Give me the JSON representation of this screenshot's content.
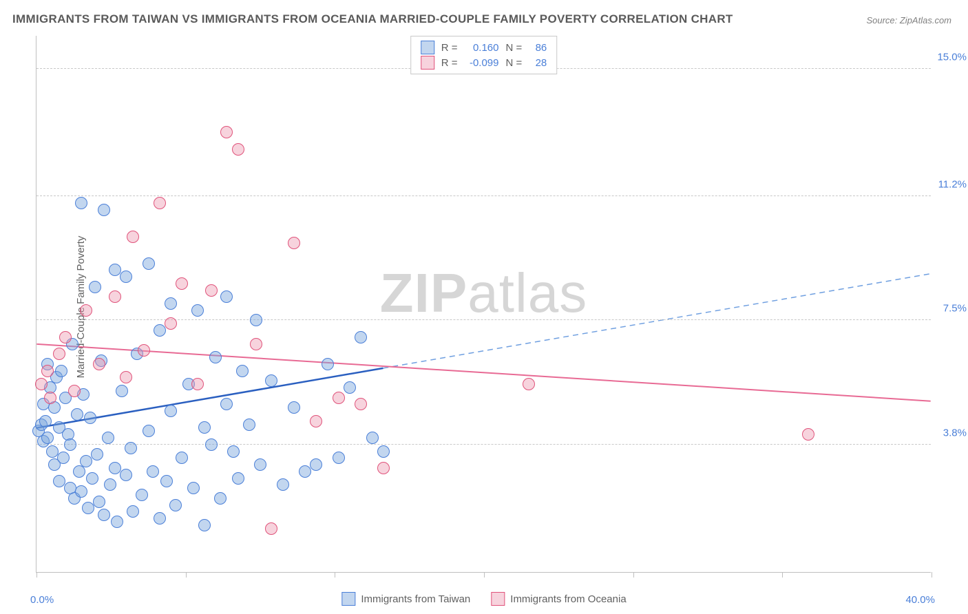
{
  "title": "IMMIGRANTS FROM TAIWAN VS IMMIGRANTS FROM OCEANIA MARRIED-COUPLE FAMILY POVERTY CORRELATION CHART",
  "source": "Source: ZipAtlas.com",
  "y_axis_label": "Married-Couple Family Poverty",
  "watermark_a": "ZIP",
  "watermark_b": "atlas",
  "chart": {
    "type": "scatter",
    "background_color": "#ffffff",
    "grid_color": "#c8c8c8",
    "axis_color": "#bfbfbf",
    "label_fontsize": 15,
    "title_fontsize": 17,
    "x_min": 0.0,
    "x_max": 40.0,
    "x_min_label": "0.0%",
    "x_max_label": "40.0%",
    "x_ticks": [
      0,
      6.67,
      13.33,
      20,
      26.67,
      33.33,
      40
    ],
    "y_min": 0.0,
    "y_max": 16.0,
    "y_gridlines": [
      {
        "value": 3.8,
        "label": "3.8%"
      },
      {
        "value": 7.5,
        "label": "7.5%"
      },
      {
        "value": 11.2,
        "label": "11.2%"
      },
      {
        "value": 15.0,
        "label": "15.0%"
      }
    ],
    "series": [
      {
        "name": "Immigrants from Taiwan",
        "marker_fill": "rgba(120,165,220,0.45)",
        "marker_stroke": "#4a7fd8",
        "marker_size": 18,
        "r_value": "0.160",
        "n_value": "86",
        "trend": {
          "x1": 0,
          "y1": 4.3,
          "x2": 40,
          "y2": 8.9,
          "solid_until_x": 15.5,
          "solid_color": "#2a5fc0",
          "solid_width": 2.5,
          "dash_color": "#6f9fe0",
          "dash_width": 1.5
        },
        "points": [
          [
            0.1,
            4.2
          ],
          [
            0.2,
            4.4
          ],
          [
            0.3,
            3.9
          ],
          [
            0.3,
            5.0
          ],
          [
            0.4,
            4.5
          ],
          [
            0.5,
            6.2
          ],
          [
            0.5,
            4.0
          ],
          [
            0.6,
            5.5
          ],
          [
            0.7,
            3.6
          ],
          [
            0.8,
            4.9
          ],
          [
            0.8,
            3.2
          ],
          [
            0.9,
            5.8
          ],
          [
            1.0,
            4.3
          ],
          [
            1.0,
            2.7
          ],
          [
            1.1,
            6.0
          ],
          [
            1.2,
            3.4
          ],
          [
            1.3,
            5.2
          ],
          [
            1.4,
            4.1
          ],
          [
            1.5,
            2.5
          ],
          [
            1.5,
            3.8
          ],
          [
            1.6,
            6.8
          ],
          [
            1.7,
            2.2
          ],
          [
            1.8,
            4.7
          ],
          [
            1.9,
            3.0
          ],
          [
            2.0,
            11.0
          ],
          [
            2.0,
            2.4
          ],
          [
            2.1,
            5.3
          ],
          [
            2.2,
            3.3
          ],
          [
            2.3,
            1.9
          ],
          [
            2.4,
            4.6
          ],
          [
            2.5,
            2.8
          ],
          [
            2.6,
            8.5
          ],
          [
            2.7,
            3.5
          ],
          [
            2.8,
            2.1
          ],
          [
            2.9,
            6.3
          ],
          [
            3.0,
            10.8
          ],
          [
            3.0,
            1.7
          ],
          [
            3.2,
            4.0
          ],
          [
            3.3,
            2.6
          ],
          [
            3.5,
            3.1
          ],
          [
            3.5,
            9.0
          ],
          [
            3.6,
            1.5
          ],
          [
            3.8,
            5.4
          ],
          [
            4.0,
            2.9
          ],
          [
            4.0,
            8.8
          ],
          [
            4.2,
            3.7
          ],
          [
            4.3,
            1.8
          ],
          [
            4.5,
            6.5
          ],
          [
            4.7,
            2.3
          ],
          [
            5.0,
            4.2
          ],
          [
            5.0,
            9.2
          ],
          [
            5.2,
            3.0
          ],
          [
            5.5,
            1.6
          ],
          [
            5.5,
            7.2
          ],
          [
            5.8,
            2.7
          ],
          [
            6.0,
            4.8
          ],
          [
            6.0,
            8.0
          ],
          [
            6.2,
            2.0
          ],
          [
            6.5,
            3.4
          ],
          [
            6.8,
            5.6
          ],
          [
            7.0,
            2.5
          ],
          [
            7.2,
            7.8
          ],
          [
            7.5,
            4.3
          ],
          [
            7.5,
            1.4
          ],
          [
            7.8,
            3.8
          ],
          [
            8.0,
            6.4
          ],
          [
            8.2,
            2.2
          ],
          [
            8.5,
            5.0
          ],
          [
            8.5,
            8.2
          ],
          [
            8.8,
            3.6
          ],
          [
            9.0,
            2.8
          ],
          [
            9.2,
            6.0
          ],
          [
            9.5,
            4.4
          ],
          [
            9.8,
            7.5
          ],
          [
            10.0,
            3.2
          ],
          [
            10.5,
            5.7
          ],
          [
            11.0,
            2.6
          ],
          [
            11.5,
            4.9
          ],
          [
            12.0,
            3.0
          ],
          [
            12.5,
            3.2
          ],
          [
            13.0,
            6.2
          ],
          [
            13.5,
            3.4
          ],
          [
            14.0,
            5.5
          ],
          [
            14.5,
            7.0
          ],
          [
            15.0,
            4.0
          ],
          [
            15.5,
            3.6
          ]
        ]
      },
      {
        "name": "Immigrants from Oceania",
        "marker_fill": "rgba(235,150,175,0.42)",
        "marker_stroke": "#e0527a",
        "marker_size": 18,
        "r_value": "-0.099",
        "n_value": "28",
        "trend": {
          "x1": 0,
          "y1": 6.8,
          "x2": 40,
          "y2": 5.1,
          "solid_until_x": 40,
          "solid_color": "#e86a94",
          "solid_width": 2,
          "dash_color": "#e86a94",
          "dash_width": 2
        },
        "points": [
          [
            0.2,
            5.6
          ],
          [
            0.5,
            6.0
          ],
          [
            0.6,
            5.2
          ],
          [
            1.0,
            6.5
          ],
          [
            1.3,
            7.0
          ],
          [
            1.7,
            5.4
          ],
          [
            2.2,
            7.8
          ],
          [
            2.8,
            6.2
          ],
          [
            3.5,
            8.2
          ],
          [
            4.0,
            5.8
          ],
          [
            4.3,
            10.0
          ],
          [
            4.8,
            6.6
          ],
          [
            5.5,
            11.0
          ],
          [
            6.0,
            7.4
          ],
          [
            6.5,
            8.6
          ],
          [
            7.2,
            5.6
          ],
          [
            7.8,
            8.4
          ],
          [
            8.5,
            13.1
          ],
          [
            9.0,
            12.6
          ],
          [
            9.8,
            6.8
          ],
          [
            10.5,
            1.3
          ],
          [
            11.5,
            9.8
          ],
          [
            12.5,
            4.5
          ],
          [
            13.5,
            5.2
          ],
          [
            14.5,
            5.0
          ],
          [
            15.5,
            3.1
          ],
          [
            22.0,
            5.6
          ],
          [
            34.5,
            4.1
          ]
        ]
      }
    ],
    "bottom_legend": [
      {
        "label": "Immigrants from Taiwan",
        "fill": "rgba(120,165,220,0.45)",
        "stroke": "#4a7fd8"
      },
      {
        "label": "Immigrants from Oceania",
        "fill": "rgba(235,150,175,0.42)",
        "stroke": "#e0527a"
      }
    ],
    "stats_labels": {
      "r": "R =",
      "n": "N ="
    }
  }
}
